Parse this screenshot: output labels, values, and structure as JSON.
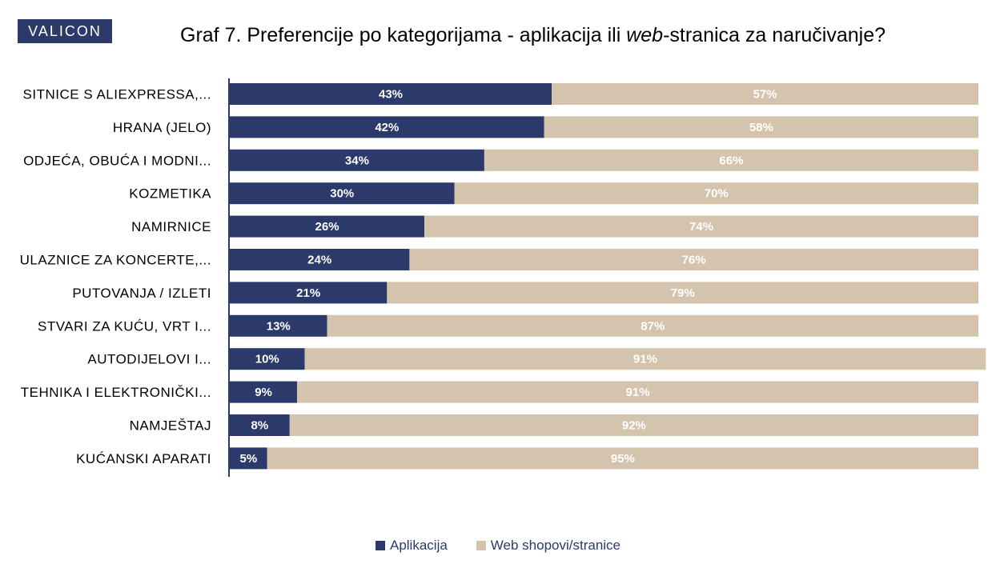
{
  "brand": {
    "logo_text": "VALICON",
    "color": "#2b3a6b"
  },
  "header": {
    "title_before": "Graf 7. Preferencije po kategorijama - aplikacija ili ",
    "title_em": "web",
    "title_after": "-stranica za naručivanje?"
  },
  "chart_data": {
    "type": "bar",
    "orientation": "horizontal",
    "stacked": "100%",
    "title": "Graf 7. Preferencije po kategorijama - aplikacija ili web-stranica za naručivanje?",
    "categories": [
      "SITNICE S ALIEXPRESSA,...",
      "HRANA (JELO)",
      "ODJEĆA, OBUĆA I MODNI...",
      "KOZMETIKA",
      "NAMIRNICE",
      "ULAZNICE ZA KONCERTE,...",
      "PUTOVANJA / IZLETI",
      "STVARI ZA KUĆU, VRT I...",
      "AUTODIJELOVI I...",
      "TEHNIKA I ELEKTRONIČKI...",
      "NAMJEŠTAJ",
      "KUĆANSKI APARATI"
    ],
    "series": [
      {
        "name": "Aplikacija",
        "color": "#2b3a6b",
        "values": [
          43,
          42,
          34,
          30,
          26,
          24,
          21,
          13,
          10,
          9,
          8,
          5
        ]
      },
      {
        "name": "Web shopovi/stranice",
        "color": "#d5c4ad",
        "values": [
          57,
          58,
          66,
          70,
          74,
          76,
          79,
          87,
          91,
          91,
          92,
          95
        ]
      }
    ],
    "value_suffix": "%",
    "xlim": [
      0,
      100
    ],
    "grid": false,
    "legend_position": "bottom"
  }
}
